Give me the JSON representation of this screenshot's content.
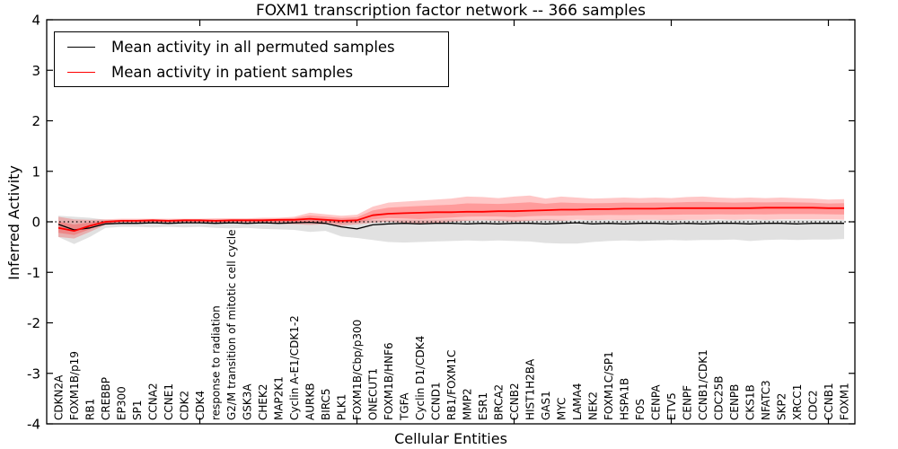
{
  "figure": {
    "title": "FOXM1 transcription factor network -- 366 samples",
    "xlabel": "Cellular Entities",
    "ylabel": "Inferred Activity"
  },
  "legend": {
    "items": [
      {
        "label": "Mean activity in all permuted samples",
        "color": "#000000"
      },
      {
        "label": "Mean activity in patient samples",
        "color": "#ff0000"
      }
    ]
  },
  "chart_data": {
    "type": "line",
    "title": "FOXM1 transcription factor network -- 366 samples",
    "xlabel": "Cellular Entities",
    "ylabel": "Inferred Activity",
    "ylim": [
      -4,
      4
    ],
    "yticks": [
      4,
      3,
      2,
      1,
      0,
      -1,
      -2,
      -3,
      -4
    ],
    "xticks_at_index": [
      9,
      19,
      29,
      39,
      49
    ],
    "grid": false,
    "zero_line": {
      "style": "dotted",
      "color": "#000000",
      "y": 0
    },
    "legend_position": "upper left",
    "categories": [
      "CDKN2A",
      "FOXM1B/p19",
      "RB1",
      "CREBBP",
      "EP300",
      "SP1",
      "CCNA2",
      "CCNE1",
      "CDK2",
      "CDK4",
      "response to radiation",
      "G2/M transition of mitotic cell cycle",
      "GSK3A",
      "CHEK2",
      "MAP2K1",
      "Cyclin A-E1/CDK1-2",
      "AURKB",
      "BIRC5",
      "PLK1",
      "FOXM1B/Cbp/p300",
      "ONECUT1",
      "FOXM1B/HNF6",
      "TGFA",
      "Cyclin D1/CDK4",
      "CCND1",
      "RB1/FOXM1C",
      "MMP2",
      "ESR1",
      "BRCA2",
      "CCNB2",
      "HIST1H2BA",
      "GAS1",
      "MYC",
      "LAMA4",
      "NEK2",
      "FOXM1C/SP1",
      "HSPA1B",
      "FOS",
      "CENPA",
      "ETV5",
      "CENPF",
      "CCNB1/CDK1",
      "CDC25B",
      "CENPB",
      "CKS1B",
      "NFATC3",
      "SKP2",
      "XRCC1",
      "CDC2",
      "CCNB1",
      "FOXM1"
    ],
    "series": [
      {
        "name": "Mean activity in all permuted samples",
        "color": "#000000",
        "line_width": 1.3,
        "band_color": "rgba(90,90,90,0.18)",
        "values": [
          -0.05,
          -0.16,
          -0.12,
          -0.04,
          -0.03,
          -0.03,
          -0.02,
          -0.03,
          -0.02,
          -0.02,
          -0.03,
          -0.02,
          -0.03,
          -0.02,
          -0.03,
          -0.02,
          -0.01,
          -0.03,
          -0.1,
          -0.14,
          -0.06,
          -0.04,
          -0.03,
          -0.04,
          -0.03,
          -0.03,
          -0.04,
          -0.03,
          -0.04,
          -0.03,
          -0.03,
          -0.04,
          -0.03,
          -0.02,
          -0.04,
          -0.03,
          -0.04,
          -0.03,
          -0.03,
          -0.04,
          -0.03,
          -0.04,
          -0.03,
          -0.03,
          -0.04,
          -0.03,
          -0.03,
          -0.04,
          -0.03,
          -0.03,
          -0.03
        ],
        "band_top": [
          0.12,
          0.1,
          0.08,
          0.04,
          0.03,
          0.03,
          0.03,
          0.03,
          0.03,
          0.03,
          0.03,
          0.04,
          0.03,
          0.04,
          0.04,
          0.05,
          0.06,
          0.05,
          0.04,
          0.04,
          0.04,
          0.04,
          0.04,
          0.04,
          0.04,
          0.05,
          0.04,
          0.04,
          0.05,
          0.04,
          0.04,
          0.05,
          0.04,
          0.03,
          0.04,
          0.04,
          0.04,
          0.04,
          0.04,
          0.04,
          0.04,
          0.04,
          0.04,
          0.04,
          0.04,
          0.04,
          0.04,
          0.04,
          0.04,
          0.04,
          0.03
        ],
        "band_bottom": [
          -0.3,
          -0.44,
          -0.3,
          -0.12,
          -0.1,
          -0.1,
          -0.11,
          -0.1,
          -0.11,
          -0.1,
          -0.12,
          -0.13,
          -0.12,
          -0.14,
          -0.15,
          -0.16,
          -0.2,
          -0.18,
          -0.29,
          -0.32,
          -0.36,
          -0.4,
          -0.41,
          -0.4,
          -0.39,
          -0.38,
          -0.37,
          -0.38,
          -0.37,
          -0.38,
          -0.39,
          -0.42,
          -0.43,
          -0.43,
          -0.4,
          -0.38,
          -0.37,
          -0.38,
          -0.37,
          -0.36,
          -0.37,
          -0.36,
          -0.36,
          -0.35,
          -0.38,
          -0.36,
          -0.35,
          -0.36,
          -0.35,
          -0.35,
          -0.34
        ]
      },
      {
        "name": "Mean activity in patient samples",
        "color": "#ff0000",
        "line_width": 1.8,
        "band_color": "rgba(255,0,0,0.22)",
        "values": [
          -0.12,
          -0.18,
          -0.08,
          0.0,
          0.02,
          0.02,
          0.03,
          0.02,
          0.03,
          0.03,
          0.02,
          0.03,
          0.03,
          0.03,
          0.04,
          0.04,
          0.06,
          0.04,
          0.02,
          0.03,
          0.13,
          0.16,
          0.17,
          0.18,
          0.19,
          0.19,
          0.2,
          0.2,
          0.21,
          0.21,
          0.22,
          0.23,
          0.24,
          0.24,
          0.25,
          0.25,
          0.26,
          0.26,
          0.26,
          0.27,
          0.27,
          0.27,
          0.27,
          0.27,
          0.27,
          0.28,
          0.28,
          0.28,
          0.28,
          0.27,
          0.27
        ],
        "band_top": [
          0.1,
          0.05,
          0.04,
          0.05,
          0.06,
          0.06,
          0.06,
          0.06,
          0.06,
          0.06,
          0.07,
          0.07,
          0.07,
          0.08,
          0.08,
          0.1,
          0.18,
          0.15,
          0.12,
          0.14,
          0.3,
          0.38,
          0.4,
          0.42,
          0.44,
          0.46,
          0.5,
          0.49,
          0.47,
          0.5,
          0.52,
          0.46,
          0.5,
          0.48,
          0.46,
          0.47,
          0.48,
          0.47,
          0.48,
          0.47,
          0.49,
          0.5,
          0.48,
          0.47,
          0.48,
          0.47,
          0.48,
          0.47,
          0.46,
          0.44,
          0.45
        ],
        "band_bottom": [
          -0.3,
          -0.33,
          -0.2,
          -0.06,
          -0.03,
          -0.03,
          -0.02,
          -0.03,
          -0.02,
          -0.02,
          -0.03,
          -0.02,
          -0.02,
          -0.03,
          -0.04,
          -0.05,
          -0.06,
          -0.05,
          -0.08,
          -0.05,
          -0.02,
          0.0,
          -0.02,
          -0.05,
          -0.03,
          0.0,
          0.02,
          0.03,
          0.02,
          0.0,
          0.02,
          0.03,
          0.02,
          0.04,
          0.03,
          0.04,
          0.03,
          0.04,
          0.04,
          0.03,
          0.04,
          0.04,
          0.05,
          0.04,
          0.05,
          0.04,
          0.05,
          0.05,
          0.05,
          0.05,
          0.04
        ]
      }
    ]
  }
}
